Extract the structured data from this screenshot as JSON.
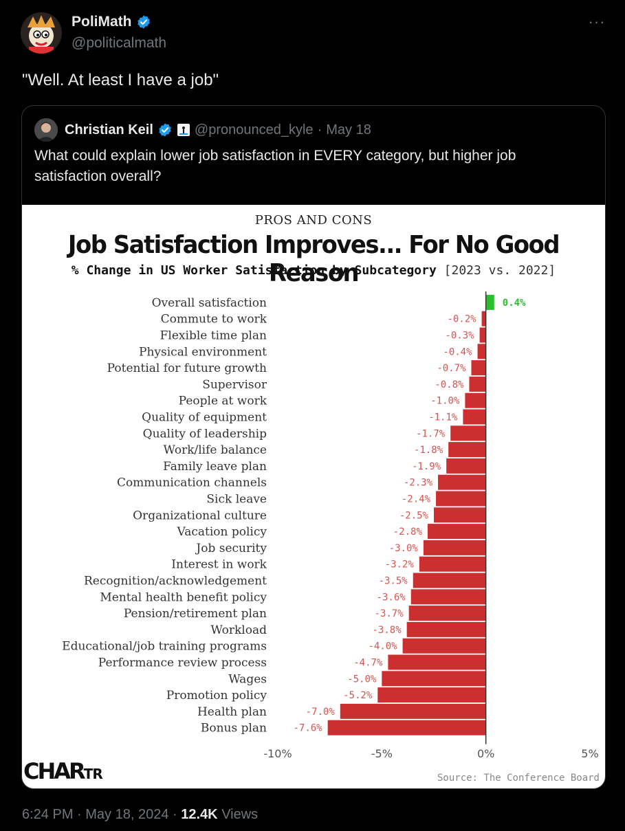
{
  "tweet": {
    "author_name": "PoliMath",
    "author_handle": "@politicalmath",
    "text": "\"Well. At least I have a job\"",
    "time": "6:24 PM",
    "date": "May 18, 2024",
    "views_count": "12.4K",
    "views_label": "Views"
  },
  "quote": {
    "author_name": "Christian Keil",
    "handle": "@pronounced_kyle",
    "date": "May 18",
    "text": "What could explain lower job satisfaction in EVERY category, but higher job satisfaction overall?"
  },
  "colors": {
    "verified": "#1d9bf0",
    "positive": "#2ebd2e",
    "negative": "#cc2f2f",
    "negative_label": "#d9534f"
  },
  "chart_data": {
    "type": "bar",
    "orientation": "horizontal",
    "kicker": "PROS AND CONS",
    "title": "Job Satisfaction Improves... For No Good Reason",
    "subtitle": "% Change in US Worker Satisfaction by Subcategory",
    "subtitle_years": "[2023 vs. 2022]",
    "categories": [
      "Overall satisfaction",
      "Commute to work",
      "Flexible time plan",
      "Physical environment",
      "Potential for future growth",
      "Supervisor",
      "People at work",
      "Quality of equipment",
      "Quality of leadership",
      "Work/life balance",
      "Family leave plan",
      "Communication channels",
      "Sick leave",
      "Organizational culture",
      "Vacation policy",
      "Job security",
      "Interest in work",
      "Recognition/acknowledgement",
      "Mental health benefit policy",
      "Pension/retirement plan",
      "Workload",
      "Educational/job training programs",
      "Performance review process",
      "Wages",
      "Promotion policy",
      "Health plan",
      "Bonus plan"
    ],
    "values": [
      0.4,
      -0.2,
      -0.3,
      -0.4,
      -0.7,
      -0.8,
      -1.0,
      -1.1,
      -1.7,
      -1.8,
      -1.9,
      -2.3,
      -2.4,
      -2.5,
      -2.8,
      -3.0,
      -3.2,
      -3.5,
      -3.6,
      -3.7,
      -3.8,
      -4.0,
      -4.7,
      -5.0,
      -5.2,
      -7.0,
      -7.6
    ],
    "labels": [
      "0.4%",
      "-0.2%",
      "-0.3%",
      "-0.4%",
      "-0.7%",
      "-0.8%",
      "-1.0%",
      "-1.1%",
      "-1.7%",
      "-1.8%",
      "-1.9%",
      "-2.3%",
      "-2.4%",
      "-2.5%",
      "-2.8%",
      "-3.0%",
      "-3.2%",
      "-3.5%",
      "-3.6%",
      "-3.7%",
      "-3.8%",
      "-4.0%",
      "-4.7%",
      "-5.0%",
      "-5.2%",
      "-7.0%",
      "-7.6%"
    ],
    "xlim": [
      -10,
      5
    ],
    "xticks": [
      -10,
      -5,
      0,
      5
    ],
    "xtick_labels": [
      "-10%",
      "-5%",
      "0%",
      "5%"
    ],
    "grid": false,
    "logo": "CHARTR",
    "source": "Source: The Conference Board"
  }
}
